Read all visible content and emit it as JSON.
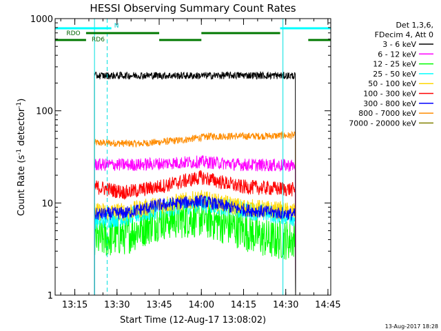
{
  "chart_data": {
    "type": "line",
    "title": "HESSI Observing Summary Count Rates",
    "xlabel": "Start Time (12-Aug-17 13:08:02)",
    "ylabel_main": "Count Rate (s",
    "ylabel_sup1": "-1",
    "ylabel_mid": " detector",
    "ylabel_sup2": "-1",
    "ylabel_end": ")",
    "ylabel": "Count Rate (s-1 detector-1)",
    "yscale": "log",
    "ylim": [
      1,
      1000
    ],
    "xlim_minutes": [
      0,
      98
    ],
    "x_ticks": [
      {
        "label": "13:15",
        "minutes": 7
      },
      {
        "label": "13:30",
        "minutes": 22
      },
      {
        "label": "13:45",
        "minutes": 37
      },
      {
        "label": "14:00",
        "minutes": 52
      },
      {
        "label": "14:15",
        "minutes": 67
      },
      {
        "label": "14:30",
        "minutes": 82
      },
      {
        "label": "14:45",
        "minutes": 97
      }
    ],
    "y_ticks": [
      {
        "label": "1",
        "value": 1
      },
      {
        "label": "10",
        "value": 10
      },
      {
        "label": "100",
        "value": 100
      },
      {
        "label": "1000",
        "value": 1000
      }
    ],
    "legend": {
      "header": [
        "Det 1,3,6,",
        "FDecim 4, Att 0"
      ],
      "placement": "right"
    },
    "series": [
      {
        "name": "3 - 6 keV",
        "color": "#000000",
        "points": [
          [
            14,
            240
          ],
          [
            30,
            242
          ],
          [
            50,
            240
          ],
          [
            66,
            243
          ],
          [
            85,
            240
          ]
        ],
        "noise": 0.04
      },
      {
        "name": "6 - 12 keV",
        "color": "#ff00ff",
        "points": [
          [
            14,
            26
          ],
          [
            30,
            26
          ],
          [
            40,
            27
          ],
          [
            52,
            28
          ],
          [
            66,
            26
          ],
          [
            85,
            25.5
          ]
        ],
        "noise": 0.07
      },
      {
        "name": "12 - 25 keV",
        "color": "#00ff00",
        "points": [
          [
            14,
            4
          ],
          [
            25,
            4.5
          ],
          [
            37,
            6.5
          ],
          [
            52,
            7
          ],
          [
            66,
            5.2
          ],
          [
            76,
            4
          ],
          [
            85,
            4
          ]
        ],
        "noise": 0.22
      },
      {
        "name": "25 - 50 keV",
        "color": "#00ffff",
        "points": [
          [
            14,
            6.5
          ],
          [
            25,
            7
          ],
          [
            37,
            8.5
          ],
          [
            52,
            10
          ],
          [
            66,
            8.5
          ],
          [
            85,
            7
          ]
        ],
        "noise": 0.1
      },
      {
        "name": "50 - 100 keV",
        "color": "#ffd700",
        "points": [
          [
            14,
            8
          ],
          [
            25,
            8
          ],
          [
            37,
            9.5
          ],
          [
            52,
            11
          ],
          [
            66,
            9
          ],
          [
            85,
            8
          ]
        ],
        "noise": 0.1
      },
      {
        "name": "100 - 300 keV",
        "color": "#ff0000",
        "points": [
          [
            14,
            15
          ],
          [
            25,
            13
          ],
          [
            37,
            15
          ],
          [
            52,
            19
          ],
          [
            66,
            15
          ],
          [
            85,
            14
          ]
        ],
        "noise": 0.08
      },
      {
        "name": "300 - 800 keV",
        "color": "#0000ff",
        "points": [
          [
            14,
            7.5
          ],
          [
            25,
            7.8
          ],
          [
            37,
            9.5
          ],
          [
            52,
            10.5
          ],
          [
            66,
            8.5
          ],
          [
            85,
            7.5
          ]
        ],
        "noise": 0.07
      },
      {
        "name": "800 - 7000 keV",
        "color": "#ff8c00",
        "points": [
          [
            14,
            45
          ],
          [
            30,
            44
          ],
          [
            45,
            48
          ],
          [
            55,
            53
          ],
          [
            70,
            53
          ],
          [
            85,
            54
          ]
        ],
        "noise": 0.04
      },
      {
        "name": "7000 - 20000 keV",
        "color": "#808000",
        "points": [],
        "noise": 0
      }
    ],
    "event_bars": {
      "cyan": [
        [
          0,
          20
        ],
        [
          80,
          98
        ]
      ],
      "green_upper": [
        [
          11,
          37
        ],
        [
          52,
          80
        ]
      ],
      "green_lower": [
        [
          0,
          11
        ],
        [
          37,
          52
        ],
        [
          90,
          98
        ]
      ]
    },
    "event_labels": [
      {
        "text": "N",
        "minutes": 21,
        "value": 790,
        "color": "#00c8c8"
      },
      {
        "text": "RDO",
        "minutes": 4,
        "value": 680,
        "color": "#006400"
      },
      {
        "text": "RD6",
        "minutes": 13,
        "value": 570,
        "color": "#006400"
      }
    ],
    "vlines": [
      {
        "minutes": 14,
        "style": "solid"
      },
      {
        "minutes": 18.5,
        "style": "dashed"
      },
      {
        "minutes": 81,
        "style": "solid"
      },
      {
        "minutes": 98,
        "style": "dashed"
      }
    ],
    "data_window": [
      14,
      85.5
    ],
    "timestamp": "13-Aug-2017 18:28"
  }
}
